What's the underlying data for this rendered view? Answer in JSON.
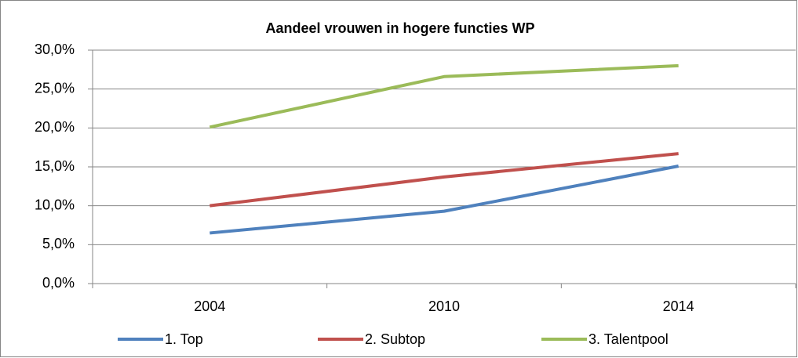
{
  "chart_data": {
    "type": "line",
    "title": "Aandeel vrouwen in hogere functies WP",
    "categories": [
      "2004",
      "2010",
      "2014"
    ],
    "series": [
      {
        "name": "1. Top",
        "color": "#4f81bd",
        "values": [
          6.5,
          9.3,
          15.1
        ]
      },
      {
        "name": "2. Subtop",
        "color": "#c0504d",
        "values": [
          10.0,
          13.7,
          16.7
        ]
      },
      {
        "name": "3. Talentpool",
        "color": "#9bbb59",
        "values": [
          20.1,
          26.6,
          28.0
        ]
      }
    ],
    "ylim": [
      0,
      30
    ],
    "yticks": [
      {
        "value": 0,
        "label": "0,0%"
      },
      {
        "value": 5,
        "label": "5,0%"
      },
      {
        "value": 10,
        "label": "10,0%"
      },
      {
        "value": 15,
        "label": "15,0%"
      },
      {
        "value": 20,
        "label": "20,0%"
      },
      {
        "value": 25,
        "label": "25,0%"
      },
      {
        "value": 30,
        "label": "30,0%"
      }
    ],
    "grid": true,
    "legend": "bottom"
  }
}
